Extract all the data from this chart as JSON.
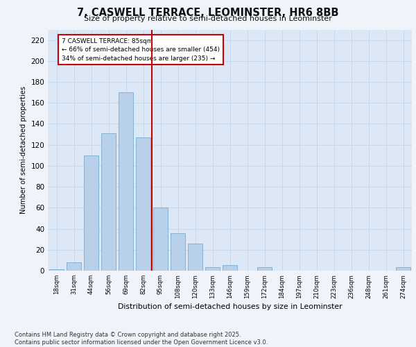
{
  "title": "7, CASWELL TERRACE, LEOMINSTER, HR6 8BB",
  "subtitle": "Size of property relative to semi-detached houses in Leominster",
  "xlabel": "Distribution of semi-detached houses by size in Leominster",
  "ylabel": "Number of semi-detached properties",
  "bar_labels": [
    "18sqm",
    "31sqm",
    "44sqm",
    "56sqm",
    "69sqm",
    "82sqm",
    "95sqm",
    "108sqm",
    "120sqm",
    "133sqm",
    "146sqm",
    "159sqm",
    "172sqm",
    "184sqm",
    "197sqm",
    "210sqm",
    "223sqm",
    "236sqm",
    "248sqm",
    "261sqm",
    "274sqm"
  ],
  "bar_values": [
    1,
    8,
    110,
    131,
    170,
    127,
    60,
    36,
    26,
    3,
    5,
    0,
    3,
    0,
    0,
    0,
    0,
    0,
    0,
    0,
    3
  ],
  "bar_color": "#b8d0ea",
  "bar_edge_color": "#7aabcf",
  "vline_color": "#cc0000",
  "annotation_text": "7 CASWELL TERRACE: 85sqm\n← 66% of semi-detached houses are smaller (454)\n34% of semi-detached houses are larger (235) →",
  "annotation_box_edgecolor": "#cc0000",
  "annotation_fill": "#ffffff",
  "ylim": [
    0,
    230
  ],
  "yticks": [
    0,
    20,
    40,
    60,
    80,
    100,
    120,
    140,
    160,
    180,
    200,
    220
  ],
  "grid_color": "#c8d8ec",
  "background_color": "#dce8f5",
  "fig_background": "#f0f4fa",
  "footer": "Contains HM Land Registry data © Crown copyright and database right 2025.\nContains public sector information licensed under the Open Government Licence v3.0."
}
